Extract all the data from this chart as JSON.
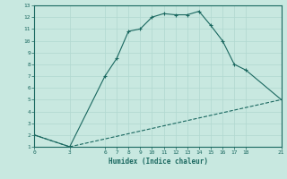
{
  "title": "",
  "xlabel": "Humidex (Indice chaleur)",
  "ylabel": "",
  "bg_color": "#c8e8e0",
  "grid_color": "#b0d8d0",
  "line_color": "#1a6860",
  "xlim": [
    0,
    21
  ],
  "ylim": [
    1,
    13
  ],
  "xticks": [
    0,
    3,
    6,
    7,
    8,
    9,
    10,
    11,
    12,
    13,
    14,
    15,
    16,
    17,
    18,
    21
  ],
  "yticks": [
    1,
    2,
    3,
    4,
    5,
    6,
    7,
    8,
    9,
    10,
    11,
    12,
    13
  ],
  "curve1_x": [
    0,
    3,
    6,
    7,
    8,
    9,
    10,
    11,
    12,
    13,
    14,
    15,
    16,
    17,
    18,
    21
  ],
  "curve1_y": [
    2,
    1,
    7,
    8.5,
    10.8,
    11.0,
    12.0,
    12.3,
    12.2,
    12.2,
    12.5,
    11.3,
    10.0,
    8.0,
    7.5,
    5.0
  ],
  "curve2_x": [
    0,
    3,
    21
  ],
  "curve2_y": [
    2,
    1,
    5
  ]
}
